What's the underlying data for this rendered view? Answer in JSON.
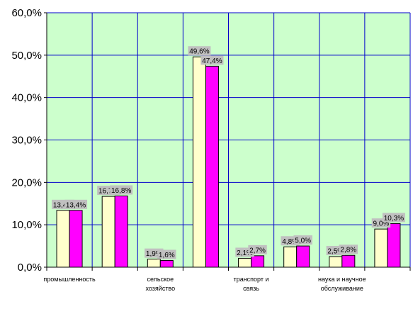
{
  "chart_data": {
    "type": "bar",
    "categories": [
      [
        "промышленность"
      ],
      [
        ""
      ],
      [
        "сельское",
        "хозяйство"
      ],
      [
        ""
      ],
      [
        "транспорт и",
        "связь"
      ],
      [
        ""
      ],
      [
        "наука и научное",
        "обслуживание"
      ],
      [
        ""
      ]
    ],
    "series": [
      {
        "color": "#ffffcc",
        "values": [
          13.4,
          16.7,
          1.9,
          49.6,
          2.1,
          4.8,
          2.5,
          9.0
        ]
      },
      {
        "color": "#ff00ff",
        "values": [
          13.4,
          16.8,
          1.6,
          47.4,
          2.7,
          5.0,
          2.8,
          10.3
        ]
      }
    ],
    "data_labels": [
      [
        "13,4%",
        "16,7%",
        "1,9%",
        "49,6%",
        "2,1%",
        "4,8%",
        "2,5%",
        "9,0%"
      ],
      [
        "13,4%",
        "16,8%",
        "1,6%",
        "47,4%",
        "2,7%",
        "5,0%",
        "2,8%",
        "10,3%"
      ]
    ],
    "y_ticks": [
      0,
      10,
      20,
      30,
      40,
      50,
      60
    ],
    "y_tick_labels": [
      "0,0%",
      "10,0%",
      "20,0%",
      "30,0%",
      "40,0%",
      "50,0%",
      "60,0%"
    ],
    "ylim": [
      0,
      60
    ],
    "grid": true,
    "plot_background": "#ccffcc",
    "grid_color": "#0000cc",
    "title": "",
    "xlabel": "",
    "ylabel": ""
  }
}
